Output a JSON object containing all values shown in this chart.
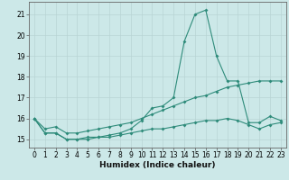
{
  "x": [
    0,
    1,
    2,
    3,
    4,
    5,
    6,
    7,
    8,
    9,
    10,
    11,
    12,
    13,
    14,
    15,
    16,
    17,
    18,
    19,
    20,
    21,
    22,
    23
  ],
  "line1": [
    16.0,
    15.3,
    15.3,
    15.0,
    15.0,
    15.1,
    15.1,
    15.2,
    15.3,
    15.5,
    15.9,
    16.5,
    16.6,
    17.0,
    19.7,
    21.0,
    21.2,
    19.0,
    17.8,
    17.8,
    15.8,
    15.8,
    16.1,
    15.9
  ],
  "line2": [
    16.0,
    15.5,
    15.6,
    15.3,
    15.3,
    15.4,
    15.5,
    15.6,
    15.7,
    15.8,
    16.0,
    16.2,
    16.4,
    16.6,
    16.8,
    17.0,
    17.1,
    17.3,
    17.5,
    17.6,
    17.7,
    17.8,
    17.8,
    17.8
  ],
  "line3": [
    16.0,
    15.3,
    15.3,
    15.0,
    15.0,
    15.0,
    15.1,
    15.1,
    15.2,
    15.3,
    15.4,
    15.5,
    15.5,
    15.6,
    15.7,
    15.8,
    15.9,
    15.9,
    16.0,
    15.9,
    15.7,
    15.5,
    15.7,
    15.8
  ],
  "line_color": "#2e8b7a",
  "bg_color": "#cce8e8",
  "grid_color_major": "#b8d4d4",
  "grid_color_minor": "#d0e6e6",
  "xlabel": "Humidex (Indice chaleur)",
  "ylim": [
    14.6,
    21.6
  ],
  "xlim": [
    -0.5,
    23.5
  ],
  "yticks": [
    15,
    16,
    17,
    18,
    19,
    20,
    21
  ],
  "xticks": [
    0,
    1,
    2,
    3,
    4,
    5,
    6,
    7,
    8,
    9,
    10,
    11,
    12,
    13,
    14,
    15,
    16,
    17,
    18,
    19,
    20,
    21,
    22,
    23
  ]
}
